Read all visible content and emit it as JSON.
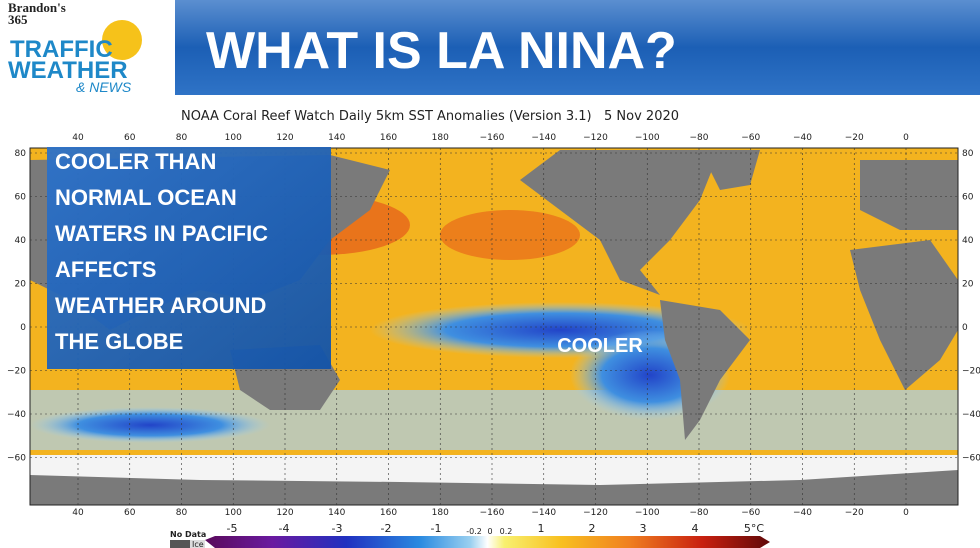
{
  "logo": {
    "line1": "Brandon's",
    "line2": "365",
    "traffic": "TRAFFIC",
    "weather": "WEATHER",
    "news": "& NEWS"
  },
  "header": {
    "title": "WHAT IS LA NINA?"
  },
  "map": {
    "title": "NOAA Coral Reef Watch Daily 5km SST Anomalies (Version 3.1)   5 Nov 2020",
    "lon_labels": [
      "40",
      "60",
      "80",
      "100",
      "120",
      "140",
      "160",
      "180",
      "−160",
      "−140",
      "−120",
      "−100",
      "−80",
      "−60",
      "−40",
      "−20",
      "0"
    ],
    "lat_labels": [
      "80",
      "60",
      "40",
      "20",
      "0",
      "−20",
      "−40",
      "−60"
    ],
    "annotation": "COOLER"
  },
  "callout": {
    "lines": [
      "COOLER THAN",
      "NORMAL OCEAN",
      "WATERS IN PACIFIC",
      "AFFECTS",
      "WEATHER AROUND",
      "THE GLOBE"
    ]
  },
  "colorbar": {
    "no_data": "No Data",
    "ice": "Ice",
    "labels": [
      "-5",
      "-4",
      "-3",
      "-2",
      "-1",
      "-0.2",
      "0",
      "0.2",
      "1",
      "2",
      "3",
      "4",
      "5°C"
    ]
  }
}
